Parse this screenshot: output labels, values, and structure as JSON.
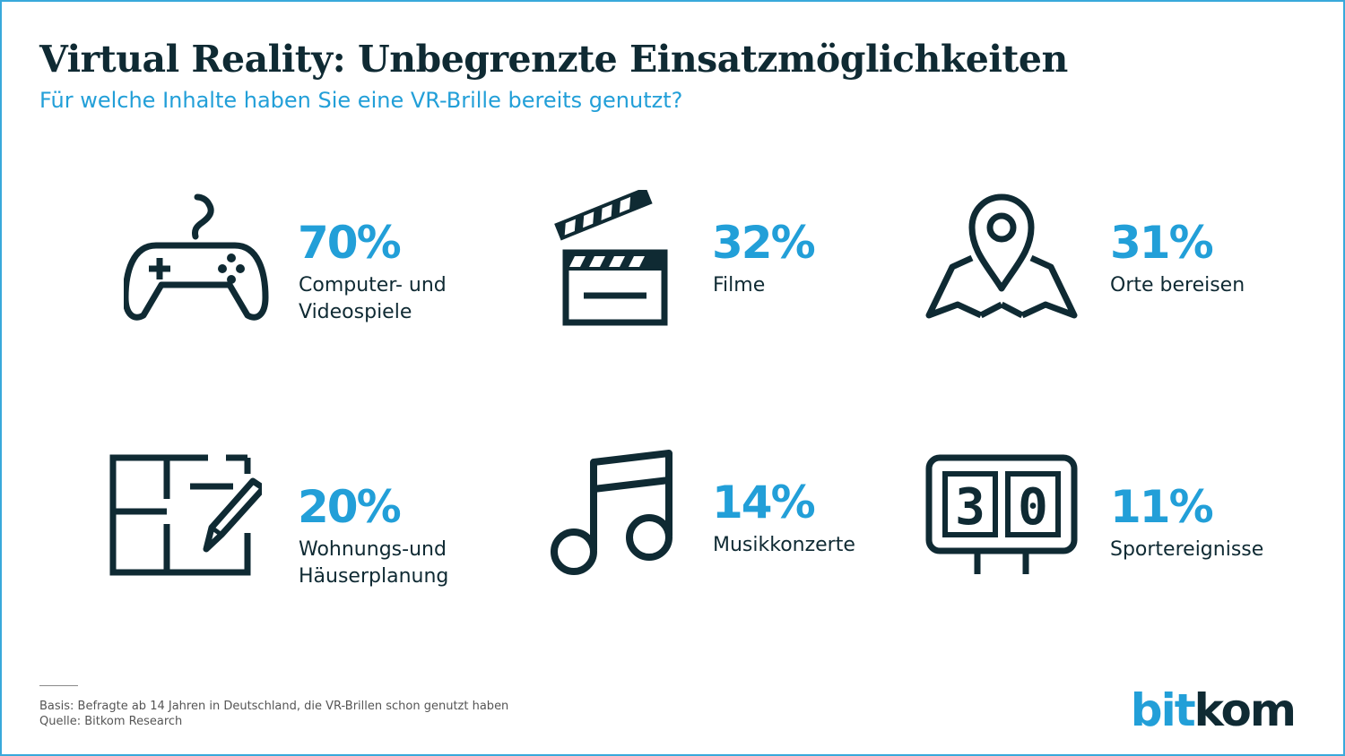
{
  "title": "Virtual Reality: Unbegrenzte Einsatzmöglichkeiten",
  "subtitle": "Für welche Inhalte haben Sie eine VR-Brille bereits genutzt?",
  "chart_data": {
    "type": "table",
    "title": "Virtual Reality: Unbegrenzte Einsatzmöglichkeiten",
    "subtitle": "Für welche Inhalte haben Sie eine VR-Brille bereits genutzt?",
    "categories": [
      "Computer- und Videospiele",
      "Filme",
      "Orte bereisen",
      "Wohnungs-und Häuserplanung",
      "Musikkonzerte",
      "Sportereignisse"
    ],
    "values": [
      70,
      32,
      31,
      20,
      14,
      11
    ],
    "unit": "%",
    "items": [
      {
        "value": "70%",
        "label_lines": [
          "Computer- und",
          "Videospiele"
        ],
        "icon": "gamepad-icon"
      },
      {
        "value": "32%",
        "label_lines": [
          "Filme"
        ],
        "icon": "clapperboard-icon"
      },
      {
        "value": "31%",
        "label_lines": [
          "Orte bereisen"
        ],
        "icon": "map-pin-icon"
      },
      {
        "value": "20%",
        "label_lines": [
          "Wohnungs-und",
          "Häuserplanung"
        ],
        "icon": "floorplan-pencil-icon"
      },
      {
        "value": "14%",
        "label_lines": [
          "Musikkonzerte"
        ],
        "icon": "music-note-icon"
      },
      {
        "value": "11%",
        "label_lines": [
          "Sportereignisse"
        ],
        "icon": "scoreboard-icon"
      }
    ]
  },
  "scoreboard": {
    "left_digit": "3",
    "right_digit": "0"
  },
  "footer": {
    "basis": "Basis: Befragte ab 14 Jahren in Deutschland, die VR-Brillen schon genutzt haben",
    "source": "Quelle: Bitkom Research"
  },
  "logo": {
    "part1": "bit",
    "part2": "kom"
  },
  "colors": {
    "accent": "#229fd8",
    "dark": "#0f2a33",
    "border": "#39a9db"
  }
}
